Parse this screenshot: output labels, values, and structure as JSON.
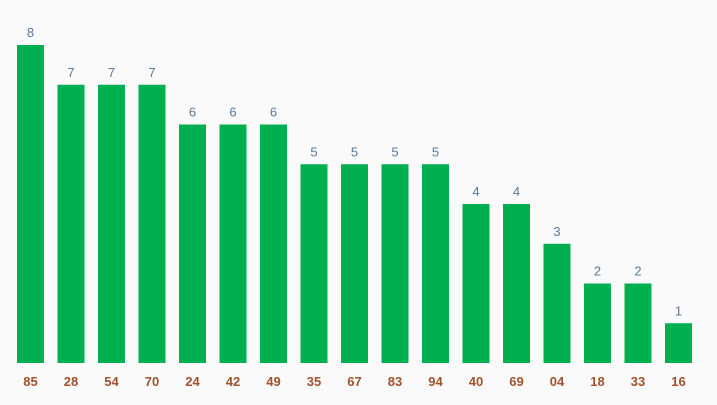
{
  "chart_data": {
    "type": "bar",
    "title": "",
    "xlabel": "",
    "ylabel": "",
    "categories": [
      "85",
      "28",
      "54",
      "70",
      "24",
      "42",
      "49",
      "35",
      "67",
      "83",
      "94",
      "40",
      "69",
      "04",
      "18",
      "33",
      "16"
    ],
    "values": [
      8,
      7,
      7,
      7,
      6,
      6,
      6,
      5,
      5,
      5,
      5,
      4,
      4,
      3,
      2,
      2,
      1
    ],
    "ylim": [
      0,
      8
    ],
    "grid": false,
    "legend": "none",
    "colors": {
      "bar": "#00b050",
      "value_label": "#5a7a9a",
      "tick_label": "#a0522d",
      "background": "#fafafa"
    }
  }
}
